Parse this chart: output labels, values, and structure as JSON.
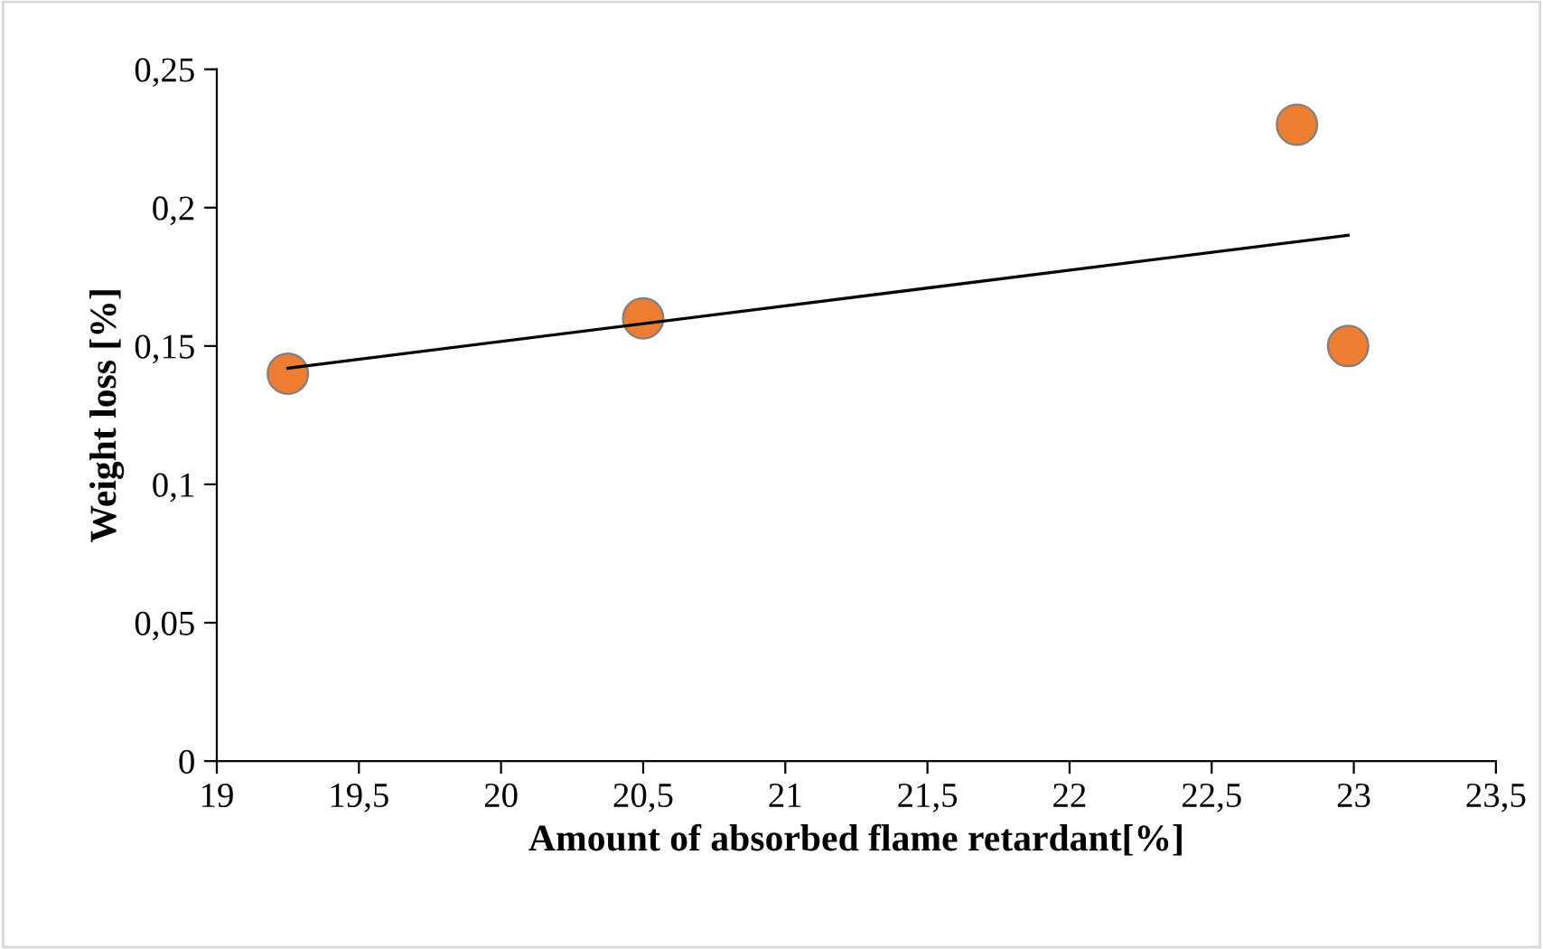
{
  "chart_data": {
    "type": "scatter",
    "xlabel": "Amount of absorbed flame retardant[%]",
    "ylabel": "Weight loss [%]",
    "x": [
      19.25,
      20.5,
      22.8,
      22.98
    ],
    "series": [
      {
        "color": "#ed7d31",
        "values": [
          0.14,
          0.16,
          0.23,
          0.15
        ],
        "marker": "circle"
      },
      {
        "type": "line",
        "color": "#000000",
        "x": [
          19.25,
          22.98
        ],
        "values": [
          0.142,
          0.19
        ],
        "marker": "none"
      }
    ],
    "xlim": [
      19,
      23.5
    ],
    "ylim": [
      0,
      0.25
    ],
    "xticks": [
      19,
      {
        "value": 19.5,
        "label": "19,5"
      },
      20,
      {
        "value": 20.5,
        "label": "20,5"
      },
      21,
      {
        "value": 21.5,
        "label": "21,5"
      },
      22,
      {
        "value": 22.5,
        "label": "22,5"
      },
      23,
      {
        "value": 23.5,
        "label": "23,5"
      }
    ],
    "yticks": [
      0,
      {
        "value": 0.05,
        "label": "0,05"
      },
      {
        "value": 0.1,
        "label": "0,1"
      },
      {
        "value": 0.15,
        "label": "0,15"
      },
      {
        "value": 0.2,
        "label": "0,2"
      },
      {
        "value": 0.25,
        "label": "0,25"
      }
    ],
    "grid": false,
    "legend": false
  }
}
